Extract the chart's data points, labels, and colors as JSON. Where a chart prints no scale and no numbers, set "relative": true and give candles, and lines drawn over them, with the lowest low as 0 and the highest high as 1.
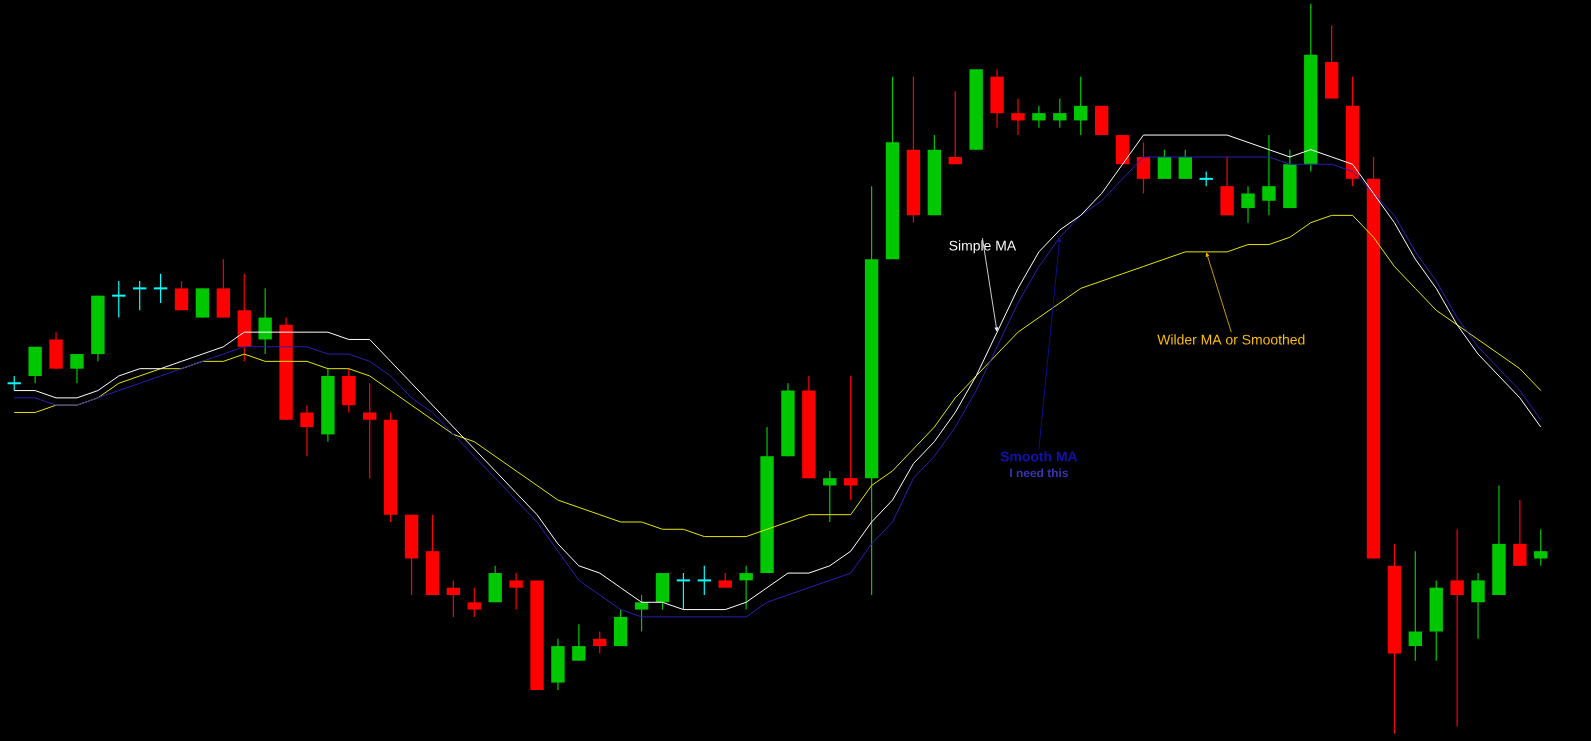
{
  "chart_data": {
    "type": "candlestick",
    "relative": true,
    "categories": [
      null,
      null,
      null,
      null,
      null,
      null,
      null,
      null,
      null,
      null,
      null,
      null,
      null,
      null,
      null,
      null,
      null,
      null,
      null,
      null,
      null,
      null,
      null,
      null,
      null,
      null,
      null,
      null,
      null,
      null,
      null,
      null,
      null,
      null,
      null,
      null,
      null,
      null,
      null,
      null,
      null,
      null,
      null,
      null,
      null,
      null,
      null,
      null,
      null,
      null,
      null,
      null,
      null,
      null,
      null,
      null,
      null,
      null,
      null,
      null,
      null,
      null,
      null,
      null,
      null,
      null,
      null,
      null,
      null,
      null,
      null,
      null,
      null,
      null
    ],
    "ohlc": [
      [
        0.48,
        0.49,
        0.47,
        0.48
      ],
      [
        0.49,
        0.53,
        0.48,
        0.53
      ],
      [
        0.54,
        0.55,
        0.5,
        0.5
      ],
      [
        0.5,
        0.52,
        0.48,
        0.52
      ],
      [
        0.52,
        0.6,
        0.51,
        0.6
      ],
      [
        0.6,
        0.62,
        0.57,
        0.6
      ],
      [
        0.61,
        0.62,
        0.58,
        0.61
      ],
      [
        0.61,
        0.63,
        0.59,
        0.61
      ],
      [
        0.61,
        0.62,
        0.58,
        0.58
      ],
      [
        0.57,
        0.61,
        0.57,
        0.61
      ],
      [
        0.61,
        0.65,
        0.57,
        0.57
      ],
      [
        0.58,
        0.63,
        0.51,
        0.53
      ],
      [
        0.54,
        0.61,
        0.52,
        0.57
      ],
      [
        0.56,
        0.57,
        0.43,
        0.43
      ],
      [
        0.44,
        0.45,
        0.38,
        0.42
      ],
      [
        0.41,
        0.5,
        0.4,
        0.49
      ],
      [
        0.49,
        0.5,
        0.44,
        0.45
      ],
      [
        0.44,
        0.48,
        0.35,
        0.43
      ],
      [
        0.43,
        0.44,
        0.29,
        0.3
      ],
      [
        0.3,
        0.3,
        0.19,
        0.24
      ],
      [
        0.25,
        0.3,
        0.19,
        0.19
      ],
      [
        0.2,
        0.21,
        0.16,
        0.19
      ],
      [
        0.18,
        0.2,
        0.16,
        0.17
      ],
      [
        0.18,
        0.23,
        0.18,
        0.22
      ],
      [
        0.21,
        0.22,
        0.17,
        0.2
      ],
      [
        0.21,
        0.21,
        0.06,
        0.06
      ],
      [
        0.07,
        0.13,
        0.06,
        0.12
      ],
      [
        0.1,
        0.15,
        0.1,
        0.12
      ],
      [
        0.13,
        0.14,
        0.11,
        0.12
      ],
      [
        0.12,
        0.17,
        0.12,
        0.16
      ],
      [
        0.17,
        0.19,
        0.14,
        0.18
      ],
      [
        0.18,
        0.22,
        0.17,
        0.22
      ],
      [
        0.21,
        0.22,
        0.17,
        0.21
      ],
      [
        0.21,
        0.23,
        0.19,
        0.21
      ],
      [
        0.21,
        0.22,
        0.2,
        0.2
      ],
      [
        0.21,
        0.23,
        0.17,
        0.22
      ],
      [
        0.22,
        0.42,
        0.22,
        0.38
      ],
      [
        0.38,
        0.48,
        0.38,
        0.47
      ],
      [
        0.47,
        0.49,
        0.35,
        0.35
      ],
      [
        0.34,
        0.36,
        0.29,
        0.35
      ],
      [
        0.35,
        0.49,
        0.32,
        0.34
      ],
      [
        0.35,
        0.75,
        0.19,
        0.65
      ],
      [
        0.65,
        0.9,
        0.65,
        0.81
      ],
      [
        0.8,
        0.9,
        0.7,
        0.71
      ],
      [
        0.71,
        0.82,
        0.71,
        0.8
      ],
      [
        0.79,
        0.88,
        0.78,
        0.78
      ],
      [
        0.8,
        0.91,
        0.8,
        0.91
      ],
      [
        0.9,
        0.91,
        0.83,
        0.85
      ],
      [
        0.85,
        0.87,
        0.82,
        0.84
      ],
      [
        0.84,
        0.86,
        0.83,
        0.85
      ],
      [
        0.84,
        0.87,
        0.83,
        0.85
      ],
      [
        0.84,
        0.9,
        0.82,
        0.86
      ],
      [
        0.86,
        0.86,
        0.82,
        0.82
      ],
      [
        0.82,
        0.82,
        0.78,
        0.78
      ],
      [
        0.79,
        0.81,
        0.74,
        0.76
      ],
      [
        0.76,
        0.8,
        0.76,
        0.79
      ],
      [
        0.76,
        0.8,
        0.76,
        0.79
      ],
      [
        0.76,
        0.77,
        0.75,
        0.76
      ],
      [
        0.75,
        0.79,
        0.71,
        0.71
      ],
      [
        0.72,
        0.75,
        0.7,
        0.74
      ],
      [
        0.73,
        0.82,
        0.71,
        0.75
      ],
      [
        0.72,
        0.8,
        0.72,
        0.78
      ],
      [
        0.78,
        1.0,
        0.77,
        0.93
      ],
      [
        0.92,
        0.97,
        0.87,
        0.87
      ],
      [
        0.86,
        0.9,
        0.75,
        0.76
      ],
      [
        0.76,
        0.79,
        0.24,
        0.24
      ],
      [
        0.23,
        0.26,
        0.0,
        0.11
      ],
      [
        0.12,
        0.25,
        0.1,
        0.14
      ],
      [
        0.14,
        0.21,
        0.1,
        0.2
      ],
      [
        0.21,
        0.28,
        0.01,
        0.19
      ],
      [
        0.18,
        0.22,
        0.13,
        0.21
      ],
      [
        0.19,
        0.34,
        0.19,
        0.26
      ],
      [
        0.26,
        0.32,
        0.23,
        0.23
      ],
      [
        0.24,
        0.28,
        0.23,
        0.25
      ]
    ],
    "colors": [
      "#00ffff",
      "#00c800",
      "#ff0000",
      "#00c800",
      "#00c800",
      "#00ffff",
      "#00ffff",
      "#00ffff",
      "#ff0000",
      "#00c800",
      "#ff0000",
      "#ff0000",
      "#00c800",
      "#ff0000",
      "#ff0000",
      "#00c800",
      "#ff0000",
      "#ff0000",
      "#ff0000",
      "#ff0000",
      "#ff0000",
      "#ff0000",
      "#ff0000",
      "#00c800",
      "#ff0000",
      "#ff0000",
      "#00c800",
      "#00c800",
      "#ff0000",
      "#00c800",
      "#00c800",
      "#00c800",
      "#00ffff",
      "#00ffff",
      "#ff0000",
      "#00c800",
      "#00c800",
      "#00c800",
      "#ff0000",
      "#00c800",
      "#ff0000",
      "#00c800",
      "#00c800",
      "#ff0000",
      "#00c800",
      "#ff0000",
      "#00c800",
      "#ff0000",
      "#ff0000",
      "#00c800",
      "#00c800",
      "#00c800",
      "#ff0000",
      "#ff0000",
      "#ff0000",
      "#00c800",
      "#00c800",
      "#00ffff",
      "#ff0000",
      "#00c800",
      "#00c800",
      "#00c800",
      "#00c800",
      "#ff0000",
      "#ff0000",
      "#ff0000",
      "#ff0000",
      "#00c800",
      "#00c800",
      "#ff0000",
      "#00c800",
      "#00c800",
      "#ff0000",
      "#00c800"
    ],
    "series": [
      {
        "type": "line",
        "name": "Simple MA",
        "color": "#ffffff",
        "values": [
          0.47,
          0.47,
          0.46,
          0.46,
          0.47,
          0.49,
          0.5,
          0.5,
          0.51,
          0.52,
          0.53,
          0.55,
          0.55,
          0.55,
          0.55,
          0.55,
          0.54,
          0.54,
          0.51,
          0.48,
          0.45,
          0.42,
          0.39,
          0.36,
          0.33,
          0.3,
          0.26,
          0.23,
          0.22,
          0.2,
          0.18,
          0.18,
          0.17,
          0.17,
          0.17,
          0.18,
          0.2,
          0.22,
          0.22,
          0.23,
          0.25,
          0.29,
          0.32,
          0.37,
          0.4,
          0.44,
          0.49,
          0.55,
          0.61,
          0.66,
          0.69,
          0.71,
          0.74,
          0.78,
          0.82,
          0.82,
          0.82,
          0.82,
          0.82,
          0.81,
          0.8,
          0.79,
          0.8,
          0.79,
          0.78,
          0.74,
          0.7,
          0.65,
          0.61,
          0.56,
          0.52,
          0.49,
          0.46,
          0.42
        ]
      },
      {
        "type": "line",
        "name": "Smooth MA",
        "color": "#2a1fb0",
        "values": [
          0.46,
          0.46,
          0.45,
          0.45,
          0.46,
          0.47,
          0.48,
          0.49,
          0.5,
          0.51,
          0.52,
          0.53,
          0.53,
          0.53,
          0.53,
          0.52,
          0.52,
          0.51,
          0.49,
          0.46,
          0.44,
          0.41,
          0.38,
          0.35,
          0.32,
          0.29,
          0.25,
          0.21,
          0.19,
          0.17,
          0.16,
          0.16,
          0.16,
          0.16,
          0.16,
          0.16,
          0.18,
          0.19,
          0.2,
          0.21,
          0.22,
          0.26,
          0.29,
          0.35,
          0.38,
          0.42,
          0.47,
          0.53,
          0.59,
          0.64,
          0.68,
          0.71,
          0.73,
          0.76,
          0.79,
          0.79,
          0.79,
          0.79,
          0.79,
          0.79,
          0.79,
          0.78,
          0.78,
          0.78,
          0.77,
          0.74,
          0.71,
          0.66,
          0.62,
          0.57,
          0.53,
          0.5,
          0.47,
          0.43
        ]
      },
      {
        "type": "line",
        "name": "Wilder MA or Smoothed",
        "color": "#e6e600",
        "values": [
          0.44,
          0.44,
          0.45,
          0.45,
          0.46,
          0.48,
          0.49,
          0.5,
          0.5,
          0.51,
          0.51,
          0.52,
          0.51,
          0.51,
          0.51,
          0.5,
          0.5,
          0.49,
          0.47,
          0.45,
          0.43,
          0.41,
          0.4,
          0.38,
          0.36,
          0.34,
          0.32,
          0.31,
          0.3,
          0.29,
          0.29,
          0.28,
          0.28,
          0.27,
          0.27,
          0.27,
          0.28,
          0.29,
          0.3,
          0.3,
          0.3,
          0.34,
          0.36,
          0.39,
          0.42,
          0.46,
          0.49,
          0.52,
          0.55,
          0.57,
          0.59,
          0.61,
          0.62,
          0.63,
          0.64,
          0.65,
          0.66,
          0.66,
          0.66,
          0.67,
          0.67,
          0.68,
          0.7,
          0.71,
          0.71,
          0.68,
          0.64,
          0.61,
          0.58,
          0.56,
          0.54,
          0.52,
          0.5,
          0.47
        ]
      }
    ],
    "annotations": [
      "I need this"
    ]
  }
}
